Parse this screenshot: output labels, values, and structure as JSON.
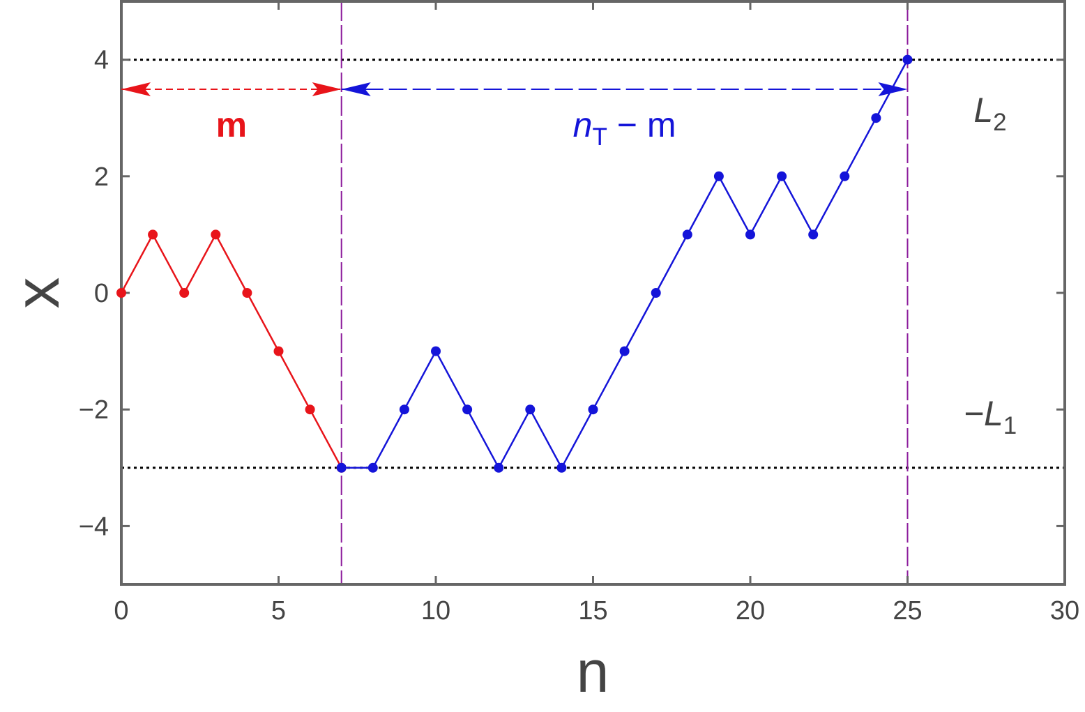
{
  "chart_data": {
    "type": "line",
    "xlabel": "n",
    "ylabel": "x",
    "xlim": [
      0,
      30
    ],
    "ylim": [
      -5,
      5
    ],
    "xticks": [
      0,
      5,
      10,
      15,
      20,
      25,
      30
    ],
    "yticks": [
      {
        "value": -4,
        "label": "−4"
      },
      {
        "value": -2,
        "label": "−2"
      },
      0,
      2,
      4
    ],
    "series": [
      {
        "color": "#e8141a",
        "x": [
          0,
          1,
          2,
          3,
          4,
          5,
          6,
          7
        ],
        "values": [
          0,
          1,
          0,
          1,
          0,
          -1,
          -2,
          -3
        ]
      },
      {
        "color": "#1414d9",
        "x": [
          7,
          8,
          9,
          10,
          11,
          12,
          13,
          14,
          15,
          16,
          17,
          18,
          19,
          20,
          21,
          22,
          23,
          24,
          25
        ],
        "values": [
          -3,
          -3,
          -2,
          -1,
          -2,
          -3,
          -2,
          -3,
          -2,
          -1,
          0,
          1,
          2,
          1,
          2,
          1,
          2,
          3,
          4
        ]
      }
    ],
    "hlines": [
      4,
      -3
    ],
    "vlines": [
      7,
      25
    ],
    "arrows": [
      {
        "from": 0,
        "to": 7,
        "color": "#e8141a",
        "label": "m"
      },
      {
        "from": 7,
        "to": 25,
        "color": "#1414d9",
        "label": [
          "n",
          "T",
          " − m"
        ]
      }
    ],
    "annotations": [
      [
        "L",
        "2"
      ],
      [
        "−L",
        "1"
      ]
    ]
  }
}
